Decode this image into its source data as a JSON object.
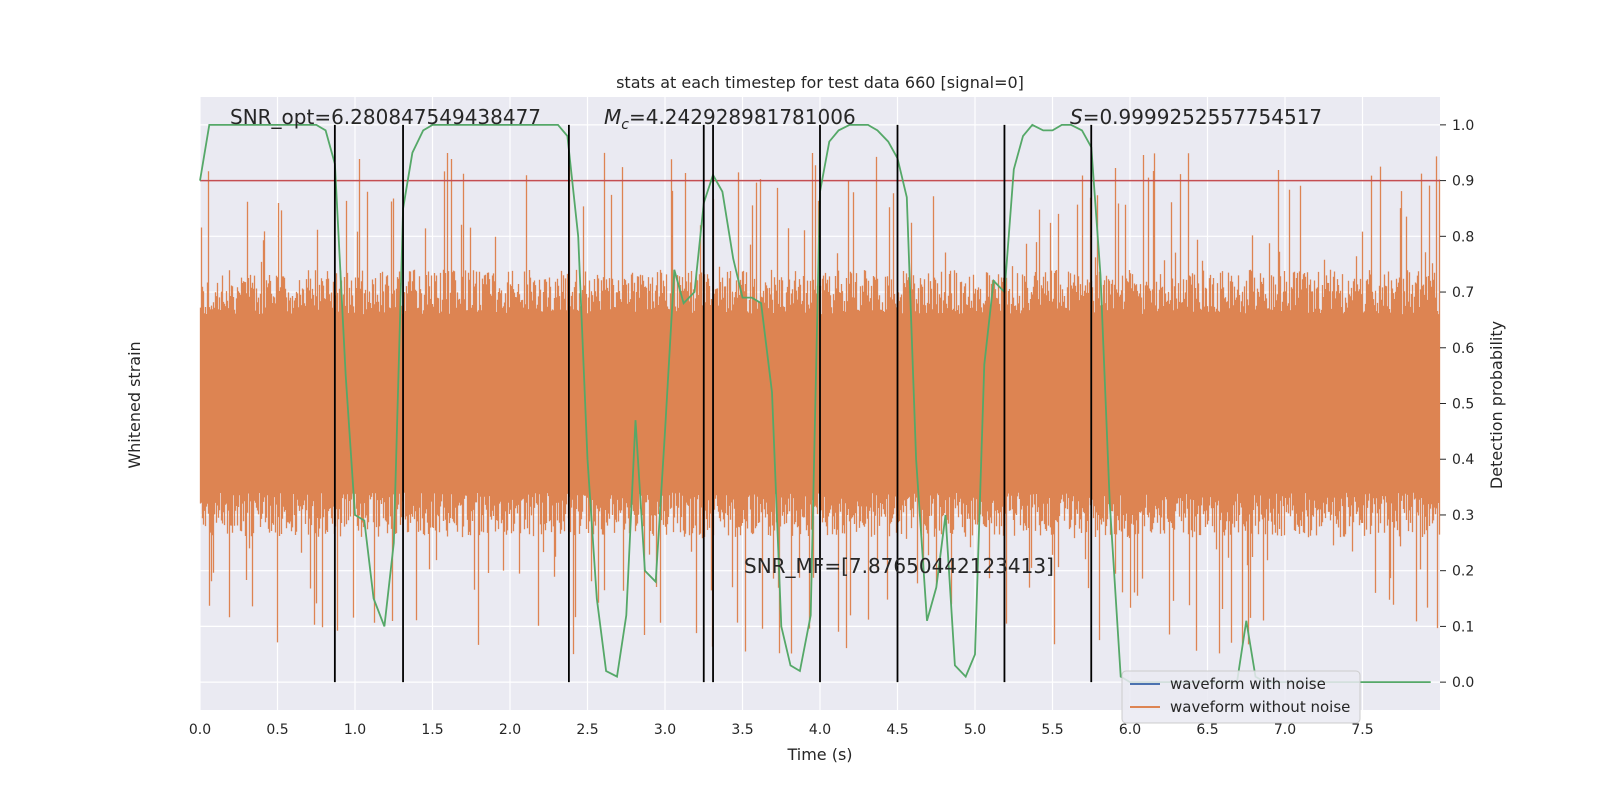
{
  "chart_data": {
    "type": "line",
    "title": "stats at each timestep for test data 660 [signal=0]",
    "xlabel": "Time (s)",
    "ylabel_left": "Whitened strain",
    "ylabel_right": "Detection probability",
    "xlim": [
      0,
      8
    ],
    "ylim_right": [
      -0.05,
      1.05
    ],
    "x_ticks": [
      0.0,
      0.5,
      1.0,
      1.5,
      2.0,
      2.5,
      3.0,
      3.5,
      4.0,
      4.5,
      5.0,
      5.5,
      6.0,
      6.5,
      7.0,
      7.5
    ],
    "x_tick_labels": [
      "0.0",
      "0.5",
      "1.0",
      "1.5",
      "2.0",
      "2.5",
      "3.0",
      "3.5",
      "4.0",
      "4.5",
      "5.0",
      "5.5",
      "6.0",
      "6.5",
      "7.0",
      "7.5"
    ],
    "y_right_ticks": [
      0.0,
      0.1,
      0.2,
      0.3,
      0.4,
      0.5,
      0.6,
      0.7,
      0.8,
      0.9,
      1.0
    ],
    "y_right_tick_labels": [
      "0.0",
      "0.1",
      "0.2",
      "0.3",
      "0.4",
      "0.5",
      "0.6",
      "0.7",
      "0.8",
      "0.9",
      "1.0"
    ],
    "grid": true,
    "legend": {
      "placement": "lower-right",
      "entries": [
        {
          "label": "waveform with noise",
          "color": "#4c72b0"
        },
        {
          "label": "waveform without noise",
          "color": "#dd8452"
        }
      ]
    },
    "annotations": {
      "snr_opt": "SNR_opt=6.280847549438477",
      "mc_prefix": "M",
      "mc_sub": "c",
      "mc_value": "=4.242928981781006",
      "s_prefix": "S",
      "s_value": "=0.9999252557754517",
      "snr_mf": "SNR_MF=[7.87650442123413]"
    },
    "threshold": 0.9,
    "vertical_lines": [
      0.87,
      1.31,
      2.38,
      3.25,
      3.31,
      4.0,
      4.5,
      5.19,
      5.75
    ],
    "series": [
      {
        "name": "waveform without noise",
        "color": "#dd8452",
        "kind": "noise-band",
        "center": 0.5,
        "typical_halfwidth": 0.2,
        "peak_halfwidth": 0.45
      },
      {
        "color": "#55a868",
        "kind": "probability",
        "x": [
          0.0,
          0.06,
          0.12,
          0.19,
          0.25,
          0.31,
          0.37,
          0.44,
          0.5,
          0.56,
          0.62,
          0.69,
          0.75,
          0.81,
          0.87,
          0.94,
          1.0,
          1.06,
          1.12,
          1.19,
          1.25,
          1.31,
          1.37,
          1.44,
          1.5,
          1.56,
          1.62,
          1.69,
          1.75,
          1.81,
          1.87,
          1.94,
          2.0,
          2.06,
          2.12,
          2.19,
          2.25,
          2.31,
          2.37,
          2.44,
          2.5,
          2.56,
          2.62,
          2.69,
          2.75,
          2.81,
          2.87,
          2.94,
          3.0,
          3.06,
          3.12,
          3.19,
          3.25,
          3.31,
          3.37,
          3.44,
          3.5,
          3.56,
          3.62,
          3.69,
          3.75,
          3.81,
          3.87,
          3.94,
          4.0,
          4.06,
          4.12,
          4.19,
          4.25,
          4.31,
          4.37,
          4.44,
          4.5,
          4.56,
          4.62,
          4.69,
          4.75,
          4.81,
          4.87,
          4.94,
          5.0,
          5.06,
          5.12,
          5.19,
          5.25,
          5.31,
          5.37,
          5.44,
          5.5,
          5.56,
          5.62,
          5.69,
          5.75,
          5.81,
          5.87,
          5.94,
          6.0,
          6.06,
          6.12,
          6.19,
          6.25,
          6.31,
          6.37,
          6.44,
          6.5,
          6.56,
          6.62,
          6.69,
          6.75,
          6.81,
          6.87,
          6.94,
          7.0,
          7.06,
          7.12,
          7.19,
          7.25,
          7.31,
          7.37,
          7.44,
          7.5,
          7.56,
          7.62,
          7.69,
          7.75,
          7.81,
          7.87,
          7.94
        ],
        "values": [
          0.9,
          1.0,
          1.0,
          1.0,
          1.0,
          1.0,
          1.0,
          1.0,
          1.0,
          1.0,
          1.0,
          1.0,
          1.0,
          0.99,
          0.93,
          0.55,
          0.3,
          0.29,
          0.15,
          0.1,
          0.25,
          0.85,
          0.95,
          0.99,
          1.0,
          1.0,
          1.0,
          1.0,
          1.0,
          1.0,
          1.0,
          1.0,
          1.0,
          1.0,
          1.0,
          1.0,
          1.0,
          1.0,
          0.98,
          0.8,
          0.4,
          0.15,
          0.02,
          0.01,
          0.12,
          0.47,
          0.2,
          0.18,
          0.45,
          0.74,
          0.68,
          0.7,
          0.86,
          0.91,
          0.88,
          0.76,
          0.69,
          0.69,
          0.68,
          0.52,
          0.1,
          0.03,
          0.02,
          0.12,
          0.88,
          0.97,
          0.99,
          1.0,
          1.0,
          1.0,
          0.99,
          0.97,
          0.94,
          0.87,
          0.4,
          0.11,
          0.17,
          0.3,
          0.03,
          0.01,
          0.05,
          0.57,
          0.72,
          0.7,
          0.92,
          0.98,
          1.0,
          0.99,
          0.99,
          1.0,
          1.0,
          0.99,
          0.96,
          0.73,
          0.32,
          0.01,
          0.0,
          0.0,
          0.0,
          0.0,
          0.0,
          0.0,
          0.0,
          0.0,
          0.0,
          0.0,
          0.0,
          0.0,
          0.11,
          0.01,
          0.0,
          0.0,
          0.0,
          0.0,
          0.0,
          0.0,
          0.0,
          0.0,
          0.0,
          0.0,
          0.0,
          0.0,
          0.0,
          0.0,
          0.0,
          0.0,
          0.0,
          0.0
        ]
      }
    ]
  }
}
